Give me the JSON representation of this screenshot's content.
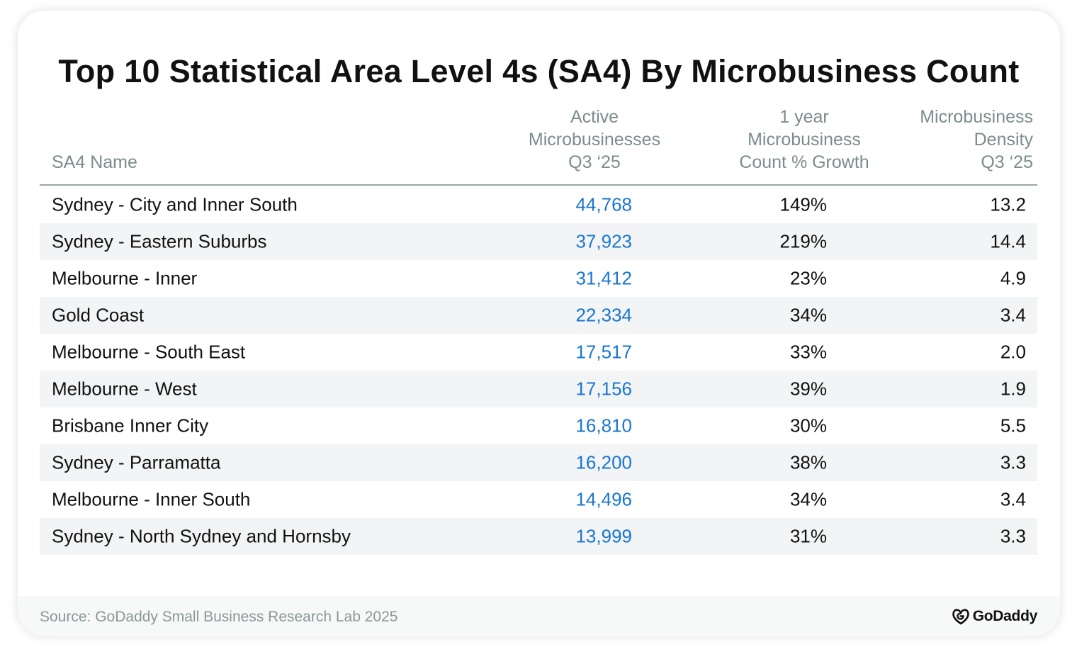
{
  "title": "Top 10 Statistical Area Level 4s (SA4) By Microbusiness Count",
  "headers": {
    "name": "SA4 Name",
    "active": [
      "Active",
      "Microbusinesses",
      "Q3 ‘25"
    ],
    "growth": [
      "1 year",
      "Microbusiness",
      "Count % Growth"
    ],
    "density": [
      "Microbusiness",
      "Density",
      "Q3 ‘25"
    ]
  },
  "rows": [
    {
      "name": "Sydney - City and Inner South",
      "active": "44,768",
      "growth": "149%",
      "density": "13.2"
    },
    {
      "name": "Sydney - Eastern Suburbs",
      "active": "37,923",
      "growth": "219%",
      "density": "14.4"
    },
    {
      "name": "Melbourne - Inner",
      "active": "31,412",
      "growth": "23%",
      "density": "4.9"
    },
    {
      "name": "Gold Coast",
      "active": "22,334",
      "growth": "34%",
      "density": "3.4"
    },
    {
      "name": "Melbourne - South East",
      "active": "17,517",
      "growth": "33%",
      "density": "2.0"
    },
    {
      "name": "Melbourne - West",
      "active": "17,156",
      "growth": "39%",
      "density": "1.9"
    },
    {
      "name": "Brisbane Inner City",
      "active": "16,810",
      "growth": "30%",
      "density": "5.5"
    },
    {
      "name": "Sydney - Parramatta",
      "active": "16,200",
      "growth": "38%",
      "density": "3.3"
    },
    {
      "name": "Melbourne - Inner South",
      "active": "14,496",
      "growth": "34%",
      "density": "3.4"
    },
    {
      "name": "Sydney - North Sydney and Hornsby",
      "active": "13,999",
      "growth": "31%",
      "density": "3.3"
    }
  ],
  "footer": {
    "source": "Source: GoDaddy Small Business Research Lab 2025",
    "logo_text": "GoDaddy",
    "logo_icon": "godaddy-logo-icon"
  },
  "colors": {
    "accent_blue": "#1976d2",
    "header_gray": "#7c8c8c",
    "row_shade": "#f3f4f5"
  },
  "chart_data": {
    "type": "table",
    "title": "Top 10 Statistical Area Level 4s (SA4) By Microbusiness Count",
    "columns": [
      "SA4 Name",
      "Active Microbusinesses Q3 ‘25",
      "1 year Microbusiness Count % Growth",
      "Microbusiness Density Q3 ‘25"
    ],
    "categories": [
      "Sydney - City and Inner South",
      "Sydney - Eastern Suburbs",
      "Melbourne - Inner",
      "Gold Coast",
      "Melbourne - South East",
      "Melbourne - West",
      "Brisbane Inner City",
      "Sydney - Parramatta",
      "Melbourne - Inner South",
      "Sydney - North Sydney and Hornsby"
    ],
    "series": [
      {
        "name": "Active Microbusinesses Q3 ‘25",
        "values": [
          44768,
          37923,
          31412,
          22334,
          17517,
          17156,
          16810,
          16200,
          14496,
          13999
        ]
      },
      {
        "name": "1 year Microbusiness Count % Growth",
        "values": [
          149,
          219,
          23,
          34,
          33,
          39,
          30,
          38,
          34,
          31
        ]
      },
      {
        "name": "Microbusiness Density Q3 ‘25",
        "values": [
          13.2,
          14.4,
          4.9,
          3.4,
          2.0,
          1.9,
          5.5,
          3.3,
          3.4,
          3.3
        ]
      }
    ]
  }
}
